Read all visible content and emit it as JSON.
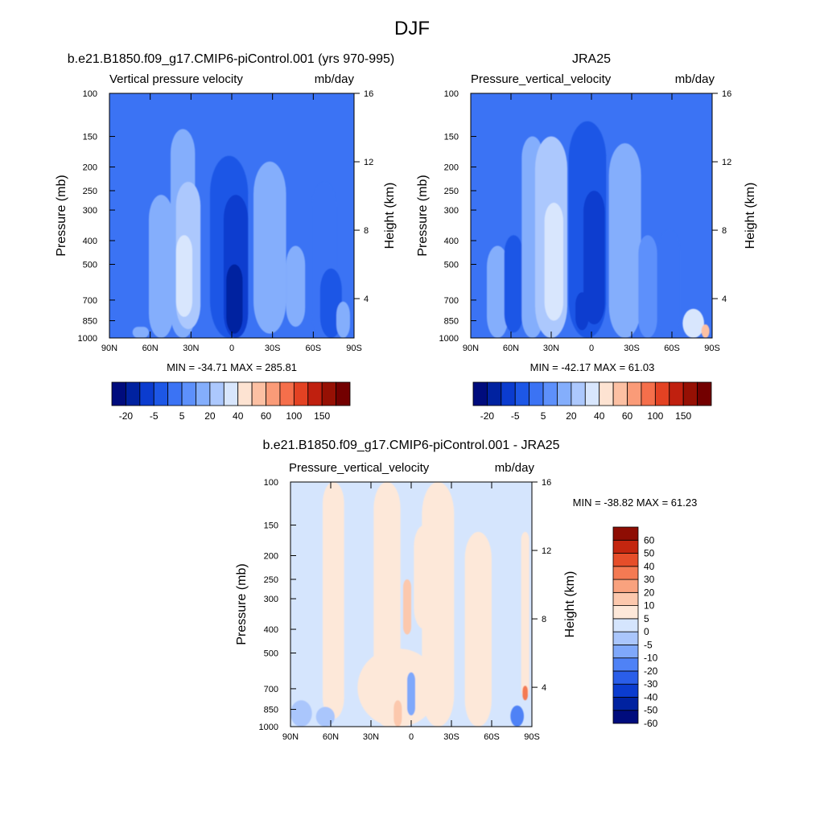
{
  "figure_title": "DJF",
  "colors": {
    "panel_scale": [
      "#000c7d",
      "#0022a0",
      "#0b3ccf",
      "#1d57e6",
      "#3b73f4",
      "#5d90fb",
      "#84aefc",
      "#acc8fd",
      "#d8e6fd",
      "#fde3d2",
      "#fcc0a3",
      "#fa9b78",
      "#f56f4b",
      "#e34223",
      "#c0200f",
      "#961004",
      "#730000"
    ],
    "diff_scale": [
      "#000c7d",
      "#0022a0",
      "#0b3ccf",
      "#2a5ee9",
      "#4f82f6",
      "#7fa8fb",
      "#aac6fc",
      "#d5e5fd",
      "#fde8d9",
      "#fcc8ad",
      "#f9a27e",
      "#f47a53",
      "#e64e2a",
      "#c4260f",
      "#8e0d03"
    ]
  },
  "chart_data": [
    {
      "type": "contour",
      "title": "b.e21.B1850.f09_g17.CMIP6-piControl.001 (yrs 970-995)",
      "left_label": "Vertical pressure velocity",
      "right_label": "mb/day",
      "ylabel": "Pressure (mb)",
      "ylabel_right": "Height (km)",
      "x_ticks": [
        "90N",
        "60N",
        "30N",
        "0",
        "30S",
        "60S",
        "90S"
      ],
      "y_ticks": [
        100,
        150,
        200,
        250,
        300,
        400,
        500,
        700,
        850,
        1000
      ],
      "y_right_ticks": [
        4,
        8,
        12,
        16
      ],
      "ylim": [
        1000,
        100
      ],
      "stats": "MIN = -34.71  MAX = 285.81",
      "colorbar_labels": [
        "-20",
        "-5",
        "5",
        "20",
        "40",
        "60",
        "100",
        "150"
      ],
      "features": [
        {
          "lat": 67,
          "width": 6,
          "ptop": 900,
          "pbot": 1000,
          "level": 6
        },
        {
          "lat": 52,
          "width": 9,
          "ptop": 260,
          "pbot": 1000,
          "level": 6
        },
        {
          "lat": 36,
          "width": 9,
          "ptop": 140,
          "pbot": 1000,
          "level": 6
        },
        {
          "lat": 32,
          "width": 9,
          "ptop": 230,
          "pbot": 920,
          "level": 7
        },
        {
          "lat": 35,
          "width": 6,
          "ptop": 380,
          "pbot": 820,
          "level": 8
        },
        {
          "lat": 2,
          "width": 14,
          "ptop": 180,
          "pbot": 1000,
          "level": 3
        },
        {
          "lat": -3,
          "width": 9,
          "ptop": 260,
          "pbot": 1000,
          "level": 2
        },
        {
          "lat": -2,
          "width": 6,
          "ptop": 500,
          "pbot": 960,
          "level": 1
        },
        {
          "lat": -28,
          "width": 12,
          "ptop": 190,
          "pbot": 960,
          "level": 6
        },
        {
          "lat": -47,
          "width": 7,
          "ptop": 420,
          "pbot": 900,
          "level": 6
        },
        {
          "lat": -68,
          "width": 9,
          "ptop": 230,
          "pbot": 1000,
          "level": 4
        },
        {
          "lat": -73,
          "width": 8,
          "ptop": 520,
          "pbot": 1000,
          "level": 3
        },
        {
          "lat": -82,
          "width": 5,
          "ptop": 710,
          "pbot": 1000,
          "level": 6
        }
      ]
    },
    {
      "type": "contour",
      "title": "JRA25",
      "left_label": "Pressure_vertical_velocity",
      "right_label": "mb/day",
      "ylabel": "Pressure (mb)",
      "ylabel_right": "Height (km)",
      "x_ticks": [
        "90N",
        "60N",
        "30N",
        "0",
        "30S",
        "60S",
        "90S"
      ],
      "y_ticks": [
        100,
        150,
        200,
        250,
        300,
        400,
        500,
        700,
        850,
        1000
      ],
      "y_right_ticks": [
        4,
        8,
        12,
        16
      ],
      "ylim": [
        1000,
        100
      ],
      "stats": "MIN = -42.17  MAX =  61.03",
      "colorbar_labels": [
        "-20",
        "-5",
        "5",
        "20",
        "40",
        "60",
        "100",
        "150"
      ],
      "features": [
        {
          "lat": 70,
          "width": 8,
          "ptop": 420,
          "pbot": 1000,
          "level": 6
        },
        {
          "lat": 58,
          "width": 7,
          "ptop": 380,
          "pbot": 950,
          "level": 3
        },
        {
          "lat": 44,
          "width": 8,
          "ptop": 150,
          "pbot": 1000,
          "level": 6
        },
        {
          "lat": 30,
          "width": 12,
          "ptop": 150,
          "pbot": 1000,
          "level": 7
        },
        {
          "lat": 28,
          "width": 7,
          "ptop": 280,
          "pbot": 850,
          "level": 8
        },
        {
          "lat": 3,
          "width": 14,
          "ptop": 130,
          "pbot": 1000,
          "level": 3
        },
        {
          "lat": -2,
          "width": 8,
          "ptop": 250,
          "pbot": 880,
          "level": 2
        },
        {
          "lat": 7,
          "width": 5,
          "ptop": 650,
          "pbot": 930,
          "level": 2
        },
        {
          "lat": -25,
          "width": 12,
          "ptop": 160,
          "pbot": 1000,
          "level": 6
        },
        {
          "lat": -42,
          "width": 7,
          "ptop": 380,
          "pbot": 1000,
          "level": 5
        },
        {
          "lat": -58,
          "width": 8,
          "ptop": 360,
          "pbot": 1000,
          "level": 4
        },
        {
          "lat": -76,
          "width": 8,
          "ptop": 760,
          "pbot": 1000,
          "level": 8
        },
        {
          "lat": -85,
          "width": 3,
          "ptop": 880,
          "pbot": 1000,
          "level": 10
        }
      ]
    },
    {
      "type": "contour",
      "title": "b.e21.B1850.f09_g17.CMIP6-piControl.001 - JRA25",
      "left_label": "Pressure_vertical_velocity",
      "right_label": "mb/day",
      "ylabel": "Pressure (mb)",
      "ylabel_right": "Height (km)",
      "x_ticks": [
        "90N",
        "60N",
        "30N",
        "0",
        "30S",
        "60S",
        "90S"
      ],
      "y_ticks": [
        100,
        150,
        200,
        250,
        300,
        400,
        500,
        700,
        850,
        1000
      ],
      "y_right_ticks": [
        4,
        8,
        12,
        16
      ],
      "ylim": [
        1000,
        100
      ],
      "stats": "MIN = -38.82  MAX =  61.23",
      "colorbar_labels": [
        "60",
        "50",
        "40",
        "30",
        "20",
        "10",
        "5",
        "0",
        "-5",
        "-10",
        "-20",
        "-30",
        "-40",
        "-50",
        "-60"
      ],
      "features": [
        {
          "lat": 58,
          "width": 8,
          "ptop": 100,
          "pbot": 930,
          "level": 8
        },
        {
          "lat": 18,
          "width": 10,
          "ptop": 100,
          "pbot": 1000,
          "level": 8
        },
        {
          "lat": 10,
          "width": 30,
          "ptop": 480,
          "pbot": 1000,
          "level": 8
        },
        {
          "lat": 3,
          "width": 3,
          "ptop": 250,
          "pbot": 420,
          "level": 9
        },
        {
          "lat": -20,
          "width": 12,
          "ptop": 100,
          "pbot": 1000,
          "level": 8
        },
        {
          "lat": -10,
          "width": 8,
          "ptop": 150,
          "pbot": 400,
          "level": 8
        },
        {
          "lat": -50,
          "width": 10,
          "ptop": 160,
          "pbot": 1000,
          "level": 8
        },
        {
          "lat": -85,
          "width": 3,
          "ptop": 160,
          "pbot": 760,
          "level": 8
        },
        {
          "lat": 10,
          "width": 3,
          "ptop": 780,
          "pbot": 1000,
          "level": 9
        },
        {
          "lat": 82,
          "width": 8,
          "ptop": 780,
          "pbot": 1000,
          "level": 6
        },
        {
          "lat": 64,
          "width": 7,
          "ptop": 830,
          "pbot": 1000,
          "level": 6
        },
        {
          "lat": 0,
          "width": 3,
          "ptop": 600,
          "pbot": 900,
          "level": 5
        },
        {
          "lat": -79,
          "width": 5,
          "ptop": 820,
          "pbot": 1000,
          "level": 4
        },
        {
          "lat": -85,
          "width": 2,
          "ptop": 680,
          "pbot": 780,
          "level": 11
        }
      ]
    }
  ]
}
